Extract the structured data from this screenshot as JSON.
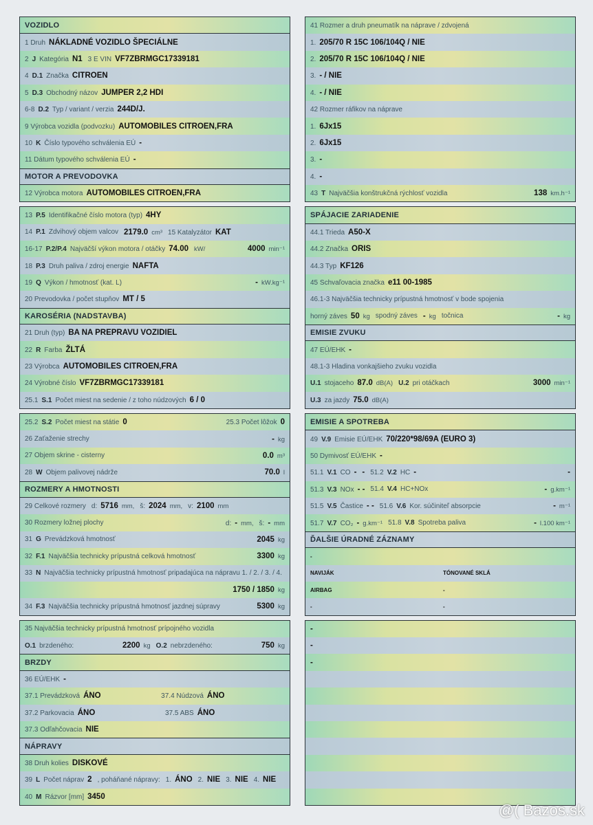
{
  "left": [
    [
      {
        "h": "VOZIDLO"
      },
      [
        {
          "l": "1 Druh",
          "v": "NÁKLADNÉ VOZIDLO ŠPECIÁLNE"
        }
      ],
      [
        {
          "l": "2",
          "c": "J",
          "l2": "Kategória",
          "v": "N1"
        },
        {
          "l": "3 E VIN",
          "v": "VF7ZBRMGC17339181"
        }
      ],
      [
        {
          "l": "4",
          "c": "D.1",
          "l2": "Značka",
          "v": "CITROEN"
        }
      ],
      [
        {
          "l": "5",
          "c": "D.3",
          "l2": "Obchodný názov",
          "v": "JUMPER 2,2 HDI"
        }
      ],
      [
        {
          "l": "6-8",
          "c": "D.2",
          "l2": "Typ / variant / verzia",
          "v": "244D/J."
        }
      ],
      [
        {
          "l": "9 Výrobca vozidla (podvozku)",
          "v": "AUTOMOBILES CITROEN,FRA"
        }
      ],
      [
        {
          "l": "10",
          "c": "K",
          "l2": "Číslo typového schválenia EÚ",
          "v": "-"
        }
      ],
      [
        {
          "l": "11 Dátum typového schválenia EÚ",
          "v": "-"
        }
      ],
      {
        "h": "MOTOR A PREVODOVKA"
      },
      [
        {
          "l": "12 Výrobca motora",
          "v": "AUTOMOBILES CITROEN,FRA"
        }
      ]
    ],
    [
      [
        {
          "l": "13",
          "c": "P.5",
          "l2": "Identifikačné číslo motora (typ)",
          "v": "4HY"
        }
      ],
      [
        {
          "l": "14",
          "c": "P.1",
          "l2": "Zdvihový objem valcov"
        },
        {
          "v": "2179.0",
          "u": "cm³"
        },
        {
          "l": "15 Katalyzátor",
          "v": "KAT"
        }
      ],
      [
        {
          "l": "16-17",
          "c": "P.2/P.4",
          "l2": "Najväčší výkon motora / otáčky",
          "v": "74.00"
        },
        {
          "u": "kW/"
        },
        {
          "r": true,
          "v": "4000",
          "u": "min⁻¹"
        }
      ],
      [
        {
          "l": "18",
          "c": "P.3",
          "l2": "Druh paliva / zdroj energie",
          "v": "NAFTA"
        }
      ],
      [
        {
          "l": "19",
          "c": "Q",
          "l2": "Výkon / hmotnosť (kat. L)"
        },
        {
          "r": true,
          "v": "-",
          "u": "kW.kg⁻¹"
        }
      ],
      [
        {
          "l": "20 Prevodovka / počet stupňov",
          "v": "MT / 5"
        }
      ],
      {
        "h": "KAROSÉRIA (NADSTAVBA)"
      },
      [
        {
          "l": "21 Druh (typ)",
          "v": "BA NA PREPRAVU VOZIDIEL"
        }
      ],
      [
        {
          "l": "22",
          "c": "R",
          "l2": "Farba",
          "v": "ŽLTÁ"
        }
      ],
      [
        {
          "l": "23 Výrobca",
          "v": "AUTOMOBILES CITROEN,FRA"
        }
      ],
      [
        {
          "l": "24 Výrobné číslo",
          "v": "VF7ZBRMGC17339181"
        }
      ],
      [
        {
          "l": "25.1",
          "c": "S.1",
          "l2": "Počet miest na sedenie / z toho núdzových",
          "v": "6 / 0"
        }
      ]
    ],
    [
      [
        {
          "l": "25.2",
          "c": "S.2",
          "l2": "Počet miest na státie",
          "v": "0"
        },
        {
          "r": true,
          "l": "25.3 Počet lôžok",
          "v": "0"
        }
      ],
      [
        {
          "l": "26 Zaťaženie strechy"
        },
        {
          "r": true,
          "v": "-",
          "u": "kg"
        }
      ],
      [
        {
          "l": "27 Objem skrine - cisterny"
        },
        {
          "r": true,
          "v": "0.0",
          "u": "m³"
        }
      ],
      [
        {
          "l": "28",
          "c": "W",
          "l2": "Objem palivovej nádrže"
        },
        {
          "r": true,
          "v": "70.0",
          "u": "l"
        }
      ],
      {
        "h": "ROZMERY A HMOTNOSTI"
      },
      [
        {
          "l": "29 Celkové rozmery"
        },
        {
          "l": "d:",
          "v": "5716",
          "u": "mm,"
        },
        {
          "l": "š:",
          "v": "2024",
          "u": "mm,"
        },
        {
          "l": "v:",
          "v": "2100",
          "u": "mm"
        }
      ],
      [
        {
          "l": "30 Rozmery ložnej plochy"
        },
        {
          "r": true,
          "l": "d:",
          "v": "-",
          "u": "mm,"
        },
        {
          "l": "š:",
          "v": "-",
          "u": "mm"
        }
      ],
      [
        {
          "l": "31",
          "c": "G",
          "l2": "Prevádzková hmotnosť"
        },
        {
          "r": true,
          "v": "2045",
          "u": "kg"
        }
      ],
      [
        {
          "l": "32",
          "c": "F.1",
          "l2": "Najväčšia technicky prípustná celková hmotnosť"
        },
        {
          "r": true,
          "v": "3300",
          "u": "kg"
        }
      ],
      [
        {
          "l": "33",
          "c": "N",
          "l2": "Najväčšia technicky prípustná hmotnosť pripadajúca na nápravu 1. / 2. / 3. / 4."
        }
      ],
      [
        {
          "r": true,
          "v": "1750 / 1850",
          "u": "kg"
        }
      ],
      [
        {
          "l": "34",
          "c": "F.3",
          "l2": "Najväčšia technicky prípustná hmotnosť jazdnej súpravy"
        },
        {
          "r": true,
          "v": "5300",
          "u": "kg"
        }
      ]
    ],
    [
      [
        {
          "l": "35 Najväčšia technicky prípustná hmotnosť prípojného vozidla"
        }
      ],
      [
        {
          "c": "O.1",
          "l2": "brzdeného:"
        },
        {
          "r": true,
          "v": "2200",
          "u": "kg"
        },
        {
          "c": "O.2",
          "l2": "nebrzdeného:"
        },
        {
          "r": true,
          "v": "750",
          "u": "kg"
        }
      ],
      {
        "h": "BRZDY"
      },
      [
        {
          "l": "36 EÚ/EHK",
          "v": "-"
        }
      ],
      [
        {
          "l": "37.1 Prevádzková",
          "v": "ÁNO"
        },
        {
          "r": true,
          "l": "37.4 Núdzová",
          "v": "ÁNO"
        },
        {
          "r": true
        }
      ],
      [
        {
          "l": "37.2 Parkovacia",
          "v": "ÁNO"
        },
        {
          "r": true,
          "l": "37.5 ABS",
          "v": "ÁNO"
        },
        {
          "r": true
        }
      ],
      [
        {
          "l": "37.3 Odľahčovacia",
          "v": "NIE"
        }
      ],
      {
        "h": "NÁPRAVY"
      },
      [
        {
          "l": "38 Druh kolies",
          "v": "DISKOVÉ"
        }
      ],
      [
        {
          "l": "39",
          "c": "L",
          "l2": "Počet náprav",
          "v": "2"
        },
        {
          "l": ", poháňané nápravy:"
        },
        {
          "l": "1.",
          "v": "ÁNO"
        },
        {
          "l": "2.",
          "v": "NIE"
        },
        {
          "l": "3.",
          "v": "NIE"
        },
        {
          "l": "4.",
          "v": "NIE"
        }
      ],
      [
        {
          "l": "40",
          "c": "M",
          "l2": "Rázvor [mm]",
          "v": "3450"
        }
      ]
    ]
  ],
  "right": [
    [
      [
        {
          "l": "41 Rozmer a druh pneumatík na nápravе / zdvojená"
        }
      ],
      [
        {
          "l": "1.",
          "v": "205/70 R 15C 106/104Q / NIE"
        }
      ],
      [
        {
          "l": "2.",
          "v": "205/70 R 15C 106/104Q / NIE"
        }
      ],
      [
        {
          "l": "3.",
          "v": "- / NIE"
        }
      ],
      [
        {
          "l": "4.",
          "v": "- / NIE"
        }
      ],
      [
        {
          "l": "42 Rozmer ráfikov na nápravе"
        }
      ],
      [
        {
          "l": "1.",
          "v": "6Jx15"
        }
      ],
      [
        {
          "l": "2.",
          "v": "6Jx15"
        }
      ],
      [
        {
          "l": "3.",
          "v": "-"
        }
      ],
      [
        {
          "l": "4.",
          "v": "-"
        }
      ],
      [
        {
          "l": "43",
          "c": "T",
          "l2": "Najväčšia konštrukčná rýchlosť vozidla"
        },
        {
          "r": true,
          "v": "138",
          "u": "km.h⁻¹"
        }
      ]
    ],
    [
      {
        "h": "SPÁJACIE ZARIADENIE"
      },
      [
        {
          "l": "44.1 Trieda",
          "v": "A50-X"
        }
      ],
      [
        {
          "l": "44.2 Značka",
          "v": "ORIS"
        }
      ],
      [
        {
          "l": "44.3 Typ",
          "v": "KF126"
        }
      ],
      [
        {
          "l": "45 Schvaľovacia značka",
          "v": "e11 00-1985"
        }
      ],
      [
        {
          "l": "46.1-3 Najväčšia technicky prípustná hmotnosť v bode spojenia"
        }
      ],
      [
        {
          "l": "horný záves",
          "v": "50",
          "u": "kg"
        },
        {
          "l": "spodný záves"
        },
        {
          "v": "-",
          "u": "kg"
        },
        {
          "l": "točnica"
        },
        {
          "r": true,
          "v": "-",
          "u": "kg"
        }
      ],
      {
        "h": "EMISIE ZVUKU"
      },
      [
        {
          "l": "47 EÚ/EHK",
          "v": "-"
        }
      ],
      [
        {
          "l": "48.1-3 Hladina vonkajšieho zvuku vozidla"
        }
      ],
      [
        {
          "c": "U.1",
          "l2": "stojaceho",
          "v": "87.0",
          "u": "dB(A)"
        },
        {
          "c": "U.2",
          "l2": "pri otáčkach"
        },
        {
          "r": true,
          "v": "3000",
          "u": "min⁻¹"
        }
      ],
      [
        {
          "c": "U.3",
          "l2": "za jazdy",
          "v": "75.0",
          "u": "dB(A)"
        }
      ]
    ],
    [
      {
        "h": "EMISIE A SPOTREBA"
      },
      [
        {
          "l": "49",
          "c": "V.9",
          "l2": "Emisie EÚ/EHK",
          "v": "70/220*98/69A (EURO 3)"
        }
      ],
      [
        {
          "l": "50 Dymivosť EÚ/EHK",
          "v": "-"
        }
      ],
      [
        {
          "l": "51.1",
          "c": "V.1",
          "l2": "CO",
          "v": "-"
        },
        {
          "v": "-"
        },
        {
          "l": "51.2",
          "c": "V.2",
          "l2": "HC",
          "v": "-"
        },
        {
          "r": true,
          "v": "-"
        }
      ],
      [
        {
          "l": "51.3",
          "c": "V.3",
          "l2": "NOx",
          "v": "- -"
        },
        {
          "l": "51.4",
          "c": "V.4",
          "l2": "HC+NOx"
        },
        {
          "r": true,
          "v": "-",
          "u": "g.km⁻¹"
        }
      ],
      [
        {
          "l": "51.5",
          "c": "V.5",
          "l2": "Častice",
          "v": "- -"
        },
        {
          "l": "51.6",
          "c": "V.6",
          "l2": "Kor. súčiniteľ absorpcie"
        },
        {
          "r": true,
          "v": "-",
          "u": "m⁻¹"
        }
      ],
      [
        {
          "l": "51.7",
          "c": "V.7",
          "l2": "CO₂",
          "v": "-",
          "u": "g.km⁻¹"
        },
        {
          "l": "51.8",
          "c": "V.8",
          "l2": "Spotreba paliva"
        },
        {
          "r": true,
          "v": "-",
          "u": "l.100 km⁻¹"
        }
      ],
      {
        "h": "ĎALŠIE ÚRADNÉ ZÁZNAMY"
      },
      [
        {
          "v": "-"
        }
      ],
      [
        {
          "v": "NAVIJÁK"
        },
        {
          "v": "TÓNOVANÉ SKLÁ"
        }
      ],
      [
        {
          "v": "AIRBAG"
        },
        {
          "v": "-"
        }
      ],
      [
        {
          "v": "-"
        },
        {
          "v": "-"
        }
      ]
    ],
    [
      [
        {
          "v": "-"
        }
      ],
      [
        {
          "v": "-"
        }
      ],
      [
        {
          "v": "-"
        }
      ],
      [
        {
          "v": ""
        }
      ],
      [
        {
          "v": ""
        }
      ],
      [
        {
          "v": ""
        }
      ],
      [
        {
          "v": ""
        }
      ],
      [
        {
          "v": ""
        }
      ],
      [
        {
          "v": ""
        }
      ],
      [
        {
          "v": ""
        }
      ],
      [
        {
          "v": ""
        }
      ]
    ]
  ],
  "watermark": "@( Bazos.sk"
}
